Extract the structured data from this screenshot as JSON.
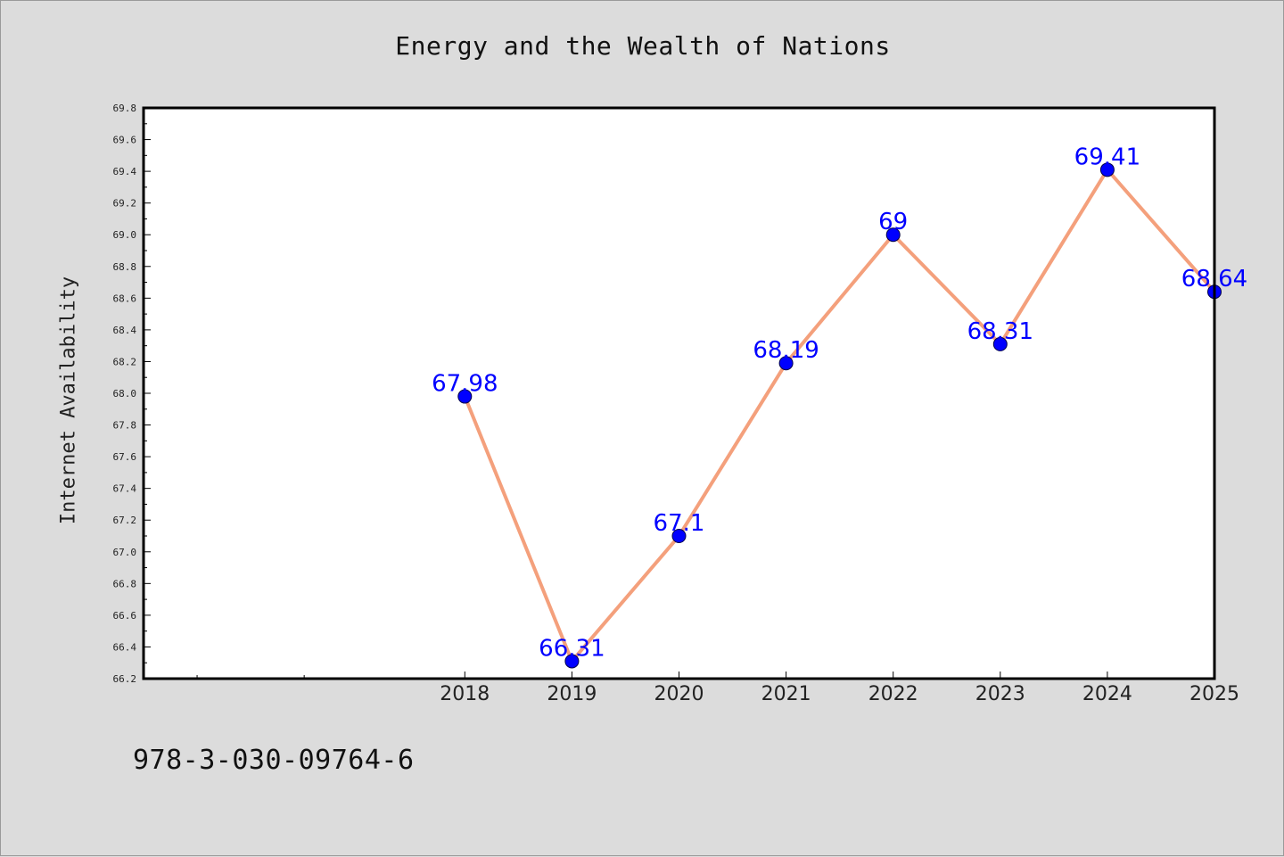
{
  "chart_data": {
    "type": "line",
    "title": "Energy and the Wealth of Nations",
    "xlabel": "",
    "ylabel": "Internet Availability",
    "x_range": [
      2015,
      2025
    ],
    "x_major_ticks": [
      2018,
      2019,
      2020,
      2021,
      2022,
      2023,
      2024,
      2025
    ],
    "x_minor_ticks": [
      2015.5,
      2016.5
    ],
    "ylim": [
      66.2,
      69.8
    ],
    "y_major_ticks": [
      66.2,
      66.4,
      66.6,
      66.8,
      67.0,
      67.2,
      67.4,
      67.6,
      67.8,
      68.0,
      68.2,
      68.4,
      68.6,
      68.8,
      69.0,
      69.2,
      69.4,
      69.6,
      69.8
    ],
    "grid": false,
    "legend": "none",
    "series": [
      {
        "x": [
          2018,
          2019,
          2020,
          2021,
          2022,
          2023,
          2024,
          2025
        ],
        "values": [
          67.98,
          66.31,
          67.1,
          68.19,
          69,
          68.31,
          69.41,
          68.64
        ],
        "labels": [
          "67.98",
          "66.31",
          "67.1",
          "68.19",
          "69",
          "68.31",
          "69.41",
          "68.64"
        ]
      }
    ],
    "colors": {
      "line": "#f4a07c",
      "marker": "#0000ff",
      "data_label": "#0000ff",
      "plot_bg": "#ffffff",
      "figure_bg": "#dcdcdc"
    }
  },
  "footer": {
    "note": "978-3-030-09764-6"
  }
}
